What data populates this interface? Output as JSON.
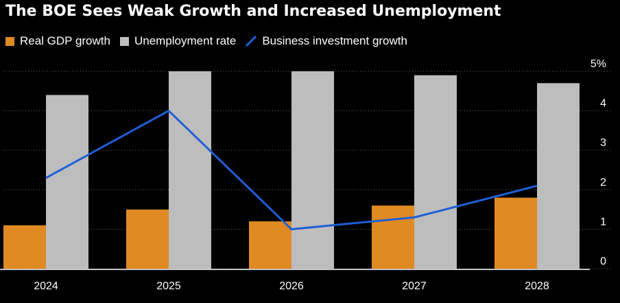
{
  "title": "The BOE Sees Weak Growth and Increased Unemployment",
  "colors": {
    "gdp": "#E08A23",
    "unemployment": "#BDBDBD",
    "investment": "#1F5FD6",
    "grid": "#666666",
    "background": "#000000",
    "text": "#FFFFFF"
  },
  "chart_data": {
    "type": "bar",
    "title": "The BOE Sees Weak Growth and Increased Unemployment",
    "categories": [
      "2024",
      "2025",
      "2026",
      "2027",
      "2028"
    ],
    "series": [
      {
        "name": "Real GDP growth",
        "kind": "bar",
        "values": [
          1.1,
          1.5,
          1.2,
          1.6,
          1.8
        ]
      },
      {
        "name": "Unemployment rate",
        "kind": "bar",
        "values": [
          4.4,
          5.0,
          5.0,
          4.9,
          4.7
        ]
      },
      {
        "name": "Business investment growth",
        "kind": "line",
        "values": [
          2.3,
          4.0,
          1.0,
          1.3,
          2.1
        ]
      }
    ],
    "y_ticks": [
      "0",
      "1",
      "2",
      "3",
      "4",
      "5%"
    ],
    "ylim": [
      0,
      5
    ],
    "xlabel": "",
    "ylabel": "",
    "grid": true,
    "y_axis_position": "right",
    "legend_position": "top-left"
  }
}
